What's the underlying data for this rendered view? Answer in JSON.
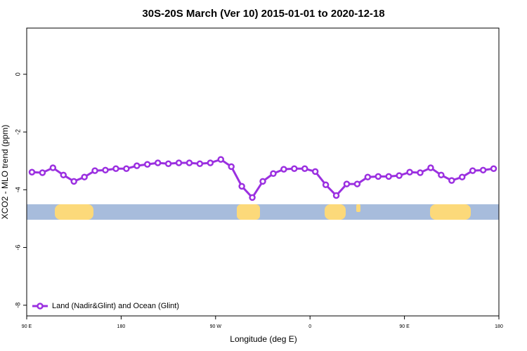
{
  "chart_data": {
    "type": "line",
    "title": "30S-20S March (Ver 10)   2015-01-01 to 2020-12-18",
    "x_label": "Longitude (deg E)",
    "y_label": "XCO2 - MLO trend (ppm)",
    "x": [
      95,
      105,
      115,
      125,
      135,
      145,
      155,
      165,
      175,
      185,
      195,
      205,
      215,
      225,
      235,
      245,
      255,
      265,
      275,
      285,
      295,
      305,
      315,
      325,
      335,
      345,
      355,
      365,
      375,
      385,
      395,
      405,
      415,
      425,
      435,
      445,
      455,
      465,
      475,
      485,
      495,
      505,
      515,
      525,
      535
    ],
    "series": [
      {
        "name": "Land (Nadir&Glint) and Ocean (Glint)",
        "color": "#9b30e0",
        "values": [
          -3.39,
          -3.41,
          -3.24,
          -3.49,
          -3.71,
          -3.56,
          -3.34,
          -3.32,
          -3.27,
          -3.27,
          -3.17,
          -3.12,
          -3.07,
          -3.1,
          -3.07,
          -3.07,
          -3.1,
          -3.07,
          -2.95,
          -3.2,
          -3.88,
          -4.27,
          -3.71,
          -3.44,
          -3.29,
          -3.27,
          -3.27,
          -3.37,
          -3.83,
          -4.2,
          -3.8,
          -3.8,
          -3.56,
          -3.54,
          -3.54,
          -3.51,
          -3.39,
          -3.41,
          -3.24,
          -3.49,
          -3.68,
          -3.56,
          -3.34,
          -3.32,
          -3.27
        ]
      }
    ],
    "xlim": [
      90,
      540
    ],
    "xticks": [
      {
        "value": 90,
        "label": "90 E"
      },
      180,
      {
        "value": 270,
        "label": "90 W"
      },
      {
        "value": 360,
        "label": "0"
      },
      {
        "value": 450,
        "label": "90 E"
      },
      {
        "value": 540,
        "label": "180"
      }
    ],
    "ylim": [
      -8.37,
      1.6
    ],
    "yticks": [
      0,
      -2,
      -4,
      -6,
      -8
    ],
    "legend": "bottom-left"
  }
}
